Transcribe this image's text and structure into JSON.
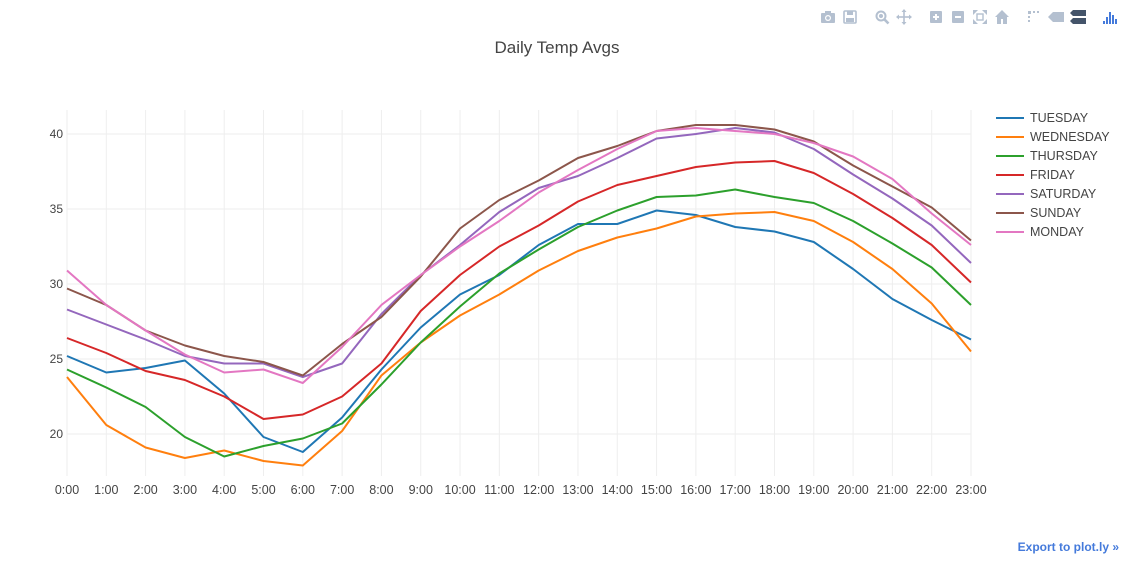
{
  "modebar": {
    "buttons": [
      {
        "icon": "camera-icon",
        "group": 0
      },
      {
        "icon": "save-icon",
        "group": 0
      },
      {
        "icon": "zoom-icon",
        "group": 1
      },
      {
        "icon": "pan-icon",
        "group": 1
      },
      {
        "icon": "zoom-in-icon",
        "group": 2
      },
      {
        "icon": "zoom-out-icon",
        "group": 2
      },
      {
        "icon": "autoscale-icon",
        "group": 2
      },
      {
        "icon": "home-icon",
        "group": 2
      },
      {
        "icon": "spikelines-icon",
        "group": 3
      },
      {
        "icon": "hover-closest-icon",
        "group": 3
      },
      {
        "icon": "hover-compare-icon",
        "group": 3
      },
      {
        "icon": "plotly-logo-icon",
        "group": 4
      }
    ],
    "icon_color": "#b4c0d0",
    "active_color": "#44546a",
    "logo_color": "#447adb"
  },
  "export_link": "Export to plot.ly »",
  "chart_data": {
    "type": "line",
    "title": "Daily Temp Avgs",
    "xlabel": "",
    "ylabel": "",
    "categories": [
      "0:00",
      "1:00",
      "2:00",
      "3:00",
      "4:00",
      "5:00",
      "6:00",
      "7:00",
      "8:00",
      "9:00",
      "10:00",
      "11:00",
      "12:00",
      "13:00",
      "14:00",
      "15:00",
      "16:00",
      "17:00",
      "18:00",
      "19:00",
      "20:00",
      "21:00",
      "22:00",
      "23:00"
    ],
    "ylim": [
      17.2,
      41.6
    ],
    "yticks": [
      20,
      25,
      30,
      35,
      40
    ],
    "grid": true,
    "legend_position": "top-right",
    "series": [
      {
        "name": "TUESDAY",
        "color": "#1f77b4",
        "values": [
          25.2,
          24.1,
          24.4,
          24.9,
          22.7,
          19.8,
          18.8,
          21.1,
          24.3,
          27.1,
          29.3,
          30.6,
          32.6,
          34.0,
          34.0,
          34.9,
          34.6,
          33.8,
          33.5,
          32.8,
          31.0,
          29.0,
          27.6,
          26.3
        ]
      },
      {
        "name": "WEDNESDAY",
        "color": "#ff7f0e",
        "values": [
          23.8,
          20.6,
          19.1,
          18.4,
          18.9,
          18.2,
          17.9,
          20.2,
          23.9,
          26.1,
          27.9,
          29.3,
          30.9,
          32.2,
          33.1,
          33.7,
          34.5,
          34.7,
          34.8,
          34.2,
          32.8,
          31.0,
          28.7,
          25.5
        ]
      },
      {
        "name": "THURSDAY",
        "color": "#2ca02c",
        "values": [
          24.3,
          23.1,
          21.8,
          19.8,
          18.5,
          19.2,
          19.7,
          20.7,
          23.3,
          26.1,
          28.5,
          30.7,
          32.3,
          33.8,
          34.9,
          35.8,
          35.9,
          36.3,
          35.8,
          35.4,
          34.2,
          32.7,
          31.1,
          28.6
        ]
      },
      {
        "name": "FRIDAY",
        "color": "#d62728",
        "values": [
          26.4,
          25.4,
          24.2,
          23.6,
          22.5,
          21.0,
          21.3,
          22.5,
          24.7,
          28.2,
          30.6,
          32.5,
          33.9,
          35.5,
          36.6,
          37.2,
          37.8,
          38.1,
          38.2,
          37.4,
          36.0,
          34.4,
          32.6,
          30.1
        ]
      },
      {
        "name": "SATURDAY",
        "color": "#9467bd",
        "values": [
          28.3,
          27.3,
          26.3,
          25.2,
          24.7,
          24.7,
          23.8,
          24.7,
          28.0,
          30.6,
          32.6,
          34.8,
          36.4,
          37.2,
          38.4,
          39.7,
          40.0,
          40.4,
          40.1,
          39.0,
          37.3,
          35.7,
          33.9,
          31.4
        ]
      },
      {
        "name": "SUNDAY",
        "color": "#8c564b",
        "values": [
          29.7,
          28.6,
          26.9,
          25.9,
          25.2,
          24.8,
          23.9,
          26.0,
          27.8,
          30.5,
          33.7,
          35.6,
          36.9,
          38.4,
          39.2,
          40.2,
          40.6,
          40.6,
          40.3,
          39.5,
          37.9,
          36.5,
          35.1,
          32.9
        ]
      },
      {
        "name": "MONDAY",
        "color": "#e377c2",
        "values": [
          30.9,
          28.6,
          26.9,
          25.3,
          24.1,
          24.3,
          23.4,
          25.8,
          28.6,
          30.6,
          32.5,
          34.2,
          36.1,
          37.6,
          39.0,
          40.2,
          40.4,
          40.2,
          40.0,
          39.4,
          38.5,
          37.0,
          34.7,
          32.6
        ]
      }
    ]
  }
}
